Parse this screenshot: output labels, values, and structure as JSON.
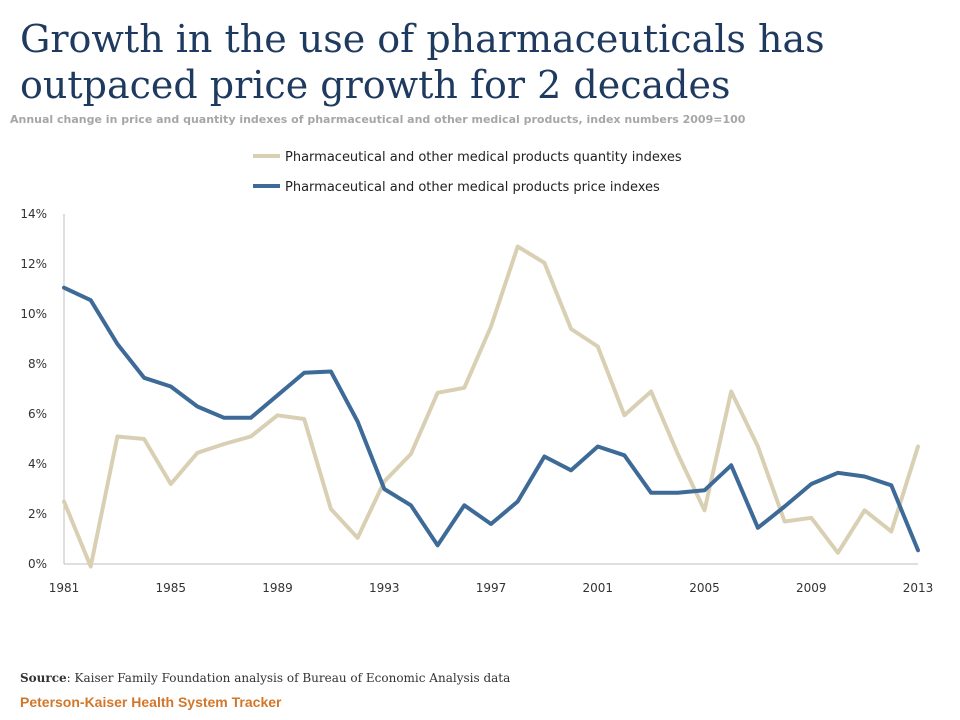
{
  "header": {
    "title": "Growth in the use of pharmaceuticals has outpaced price growth for 2 decades",
    "subtitle": "Annual change in price and quantity indexes of pharmaceutical and other medical products, index numbers 2009=100"
  },
  "footer": {
    "source_label": "Source",
    "source_text": ": Kaiser Family Foundation analysis of Bureau of Economic Analysis data",
    "brand": "Peterson-Kaiser Health System Tracker"
  },
  "chart_data": {
    "type": "line",
    "x": [
      1981,
      1982,
      1983,
      1984,
      1985,
      1986,
      1987,
      1988,
      1989,
      1990,
      1991,
      1992,
      1993,
      1994,
      1995,
      1996,
      1997,
      1998,
      1999,
      2000,
      2001,
      2002,
      2003,
      2004,
      2005,
      2006,
      2007,
      2008,
      2009,
      2010,
      2011,
      2012,
      2013
    ],
    "xticks": [
      "1981",
      "1985",
      "1989",
      "1993",
      "1997",
      "2001",
      "2005",
      "2009",
      "2013"
    ],
    "ylim": [
      0,
      14
    ],
    "yticks": [
      "0%",
      "2%",
      "4%",
      "6%",
      "8%",
      "10%",
      "12%",
      "14%"
    ],
    "grid": false,
    "legend_position": "top",
    "series": [
      {
        "name": "Pharmaceutical and other medical products quantity indexes",
        "color": "#d9d0b4",
        "values": [
          2.5,
          -0.1,
          5.1,
          5.0,
          3.2,
          4.45,
          4.8,
          5.1,
          5.95,
          5.8,
          2.2,
          1.05,
          3.3,
          4.4,
          6.85,
          7.05,
          9.5,
          12.7,
          12.05,
          9.4,
          8.7,
          5.95,
          6.9,
          4.4,
          2.15,
          6.9,
          4.7,
          1.7,
          1.85,
          0.45,
          2.15,
          1.3,
          4.7
        ]
      },
      {
        "name": "Pharmaceutical and other medical products price indexes",
        "color": "#3e6a97",
        "values": [
          11.05,
          10.55,
          8.8,
          7.45,
          7.1,
          6.3,
          5.85,
          5.85,
          6.75,
          7.65,
          7.7,
          5.7,
          3.0,
          2.35,
          0.75,
          2.35,
          1.6,
          2.5,
          4.3,
          3.75,
          4.7,
          4.35,
          2.85,
          2.85,
          2.95,
          3.95,
          1.45,
          2.3,
          3.2,
          3.65,
          3.5,
          3.15,
          0.55
        ]
      }
    ]
  }
}
